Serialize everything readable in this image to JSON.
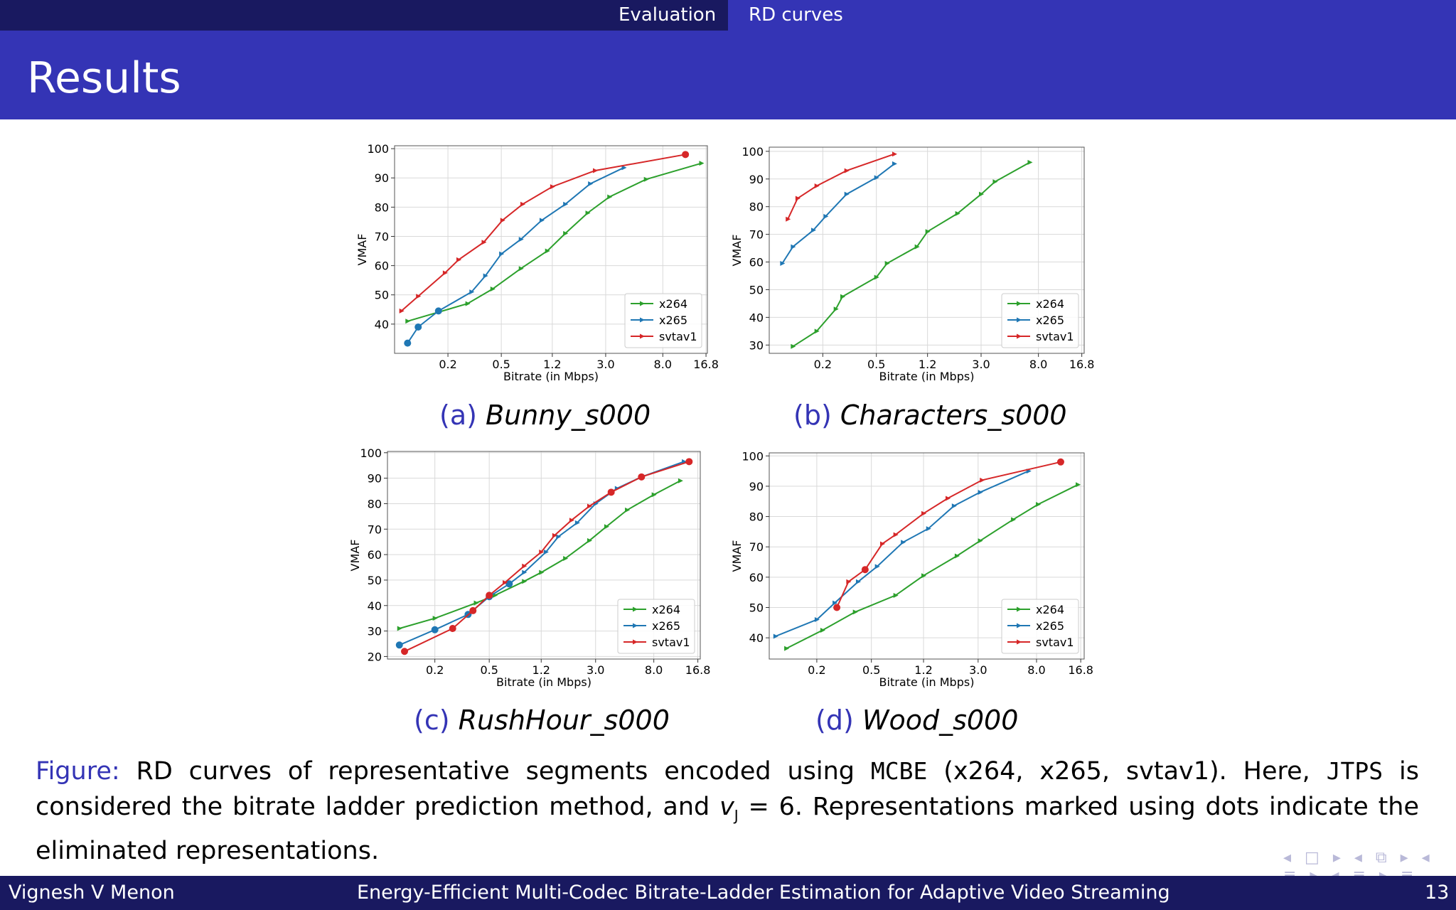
{
  "nav": {
    "section": "Evaluation",
    "subsection": "RD curves"
  },
  "slide_title": "Results",
  "colors": {
    "x264": "#2ca02c",
    "x265": "#1f77b4",
    "svtav1": "#d62728",
    "theme_dark": "#191960",
    "theme": "#3434b5"
  },
  "chart_data": [
    {
      "type": "line",
      "caption_label": "(a)",
      "caption_name": "Bunny_s000",
      "xlabel": "Bitrate (in Mbps)",
      "ylabel": "VMAF",
      "xscale": "log",
      "xticks": [
        0.2,
        0.5,
        1.2,
        3.0,
        8.0,
        16.8
      ],
      "xtick_labels": [
        "0.2",
        "0.5",
        "1.2",
        "3.0",
        "8.0",
        "16.8"
      ],
      "xlim": [
        0.08,
        17.2
      ],
      "ylim": [
        30,
        101
      ],
      "yticks": [
        40,
        50,
        60,
        70,
        80,
        90,
        100
      ],
      "grid": true,
      "legend": "lower-right",
      "series": [
        {
          "name": "x264",
          "points": [
            [
              0.1,
              41
            ],
            [
              0.28,
              47
            ],
            [
              0.43,
              52
            ],
            [
              0.7,
              59
            ],
            [
              1.1,
              65
            ],
            [
              1.5,
              71
            ],
            [
              2.2,
              78
            ],
            [
              3.2,
              83.5
            ],
            [
              6.0,
              89.5
            ],
            [
              15.5,
              95
            ]
          ],
          "eliminated": []
        },
        {
          "name": "x265",
          "points": [
            [
              0.1,
              33.5
            ],
            [
              0.12,
              39
            ],
            [
              0.17,
              44.5
            ],
            [
              0.3,
              51
            ],
            [
              0.38,
              56.5
            ],
            [
              0.5,
              64
            ],
            [
              0.7,
              69
            ],
            [
              1.0,
              75.5
            ],
            [
              1.5,
              81
            ],
            [
              2.3,
              88
            ],
            [
              4.1,
              93.5
            ]
          ],
          "eliminated": [
            0,
            1,
            2
          ]
        },
        {
          "name": "svtav1",
          "points": [
            [
              0.09,
              44.5
            ],
            [
              0.12,
              49.5
            ],
            [
              0.19,
              57.5
            ],
            [
              0.24,
              62
            ],
            [
              0.37,
              68
            ],
            [
              0.51,
              75.5
            ],
            [
              0.72,
              81
            ],
            [
              1.2,
              87
            ],
            [
              2.5,
              92.5
            ],
            [
              11.8,
              98
            ]
          ],
          "eliminated": [
            9
          ]
        }
      ]
    },
    {
      "type": "line",
      "caption_label": "(b)",
      "caption_name": "Characters_s000",
      "xlabel": "Bitrate (in Mbps)",
      "ylabel": "VMAF",
      "xscale": "log",
      "xticks": [
        0.2,
        0.5,
        1.2,
        3.0,
        8.0,
        16.8
      ],
      "xtick_labels": [
        "0.2",
        "0.5",
        "1.2",
        "3.0",
        "8.0",
        "16.8"
      ],
      "xlim": [
        0.08,
        17.5
      ],
      "ylim": [
        27,
        101.5
      ],
      "yticks": [
        30,
        40,
        50,
        60,
        70,
        80,
        90,
        100
      ],
      "grid": true,
      "legend": "lower-right",
      "series": [
        {
          "name": "x264",
          "points": [
            [
              0.12,
              29.5
            ],
            [
              0.18,
              35
            ],
            [
              0.25,
              43
            ],
            [
              0.28,
              47.5
            ],
            [
              0.5,
              54.5
            ],
            [
              0.6,
              59.5
            ],
            [
              1.0,
              65.5
            ],
            [
              1.2,
              71
            ],
            [
              2.0,
              77.5
            ],
            [
              3.0,
              84.5
            ],
            [
              3.8,
              89
            ],
            [
              6.9,
              96
            ]
          ],
          "eliminated": []
        },
        {
          "name": "x265",
          "points": [
            [
              0.1,
              59.5
            ],
            [
              0.12,
              65.5
            ],
            [
              0.17,
              71.5
            ],
            [
              0.21,
              76.5
            ],
            [
              0.3,
              84.5
            ],
            [
              0.5,
              90.5
            ],
            [
              0.68,
              95.5
            ]
          ],
          "eliminated": []
        },
        {
          "name": "svtav1",
          "points": [
            [
              0.11,
              75.5
            ],
            [
              0.13,
              83
            ],
            [
              0.18,
              87.5
            ],
            [
              0.3,
              93
            ],
            [
              0.68,
              99
            ]
          ],
          "eliminated": []
        }
      ]
    },
    {
      "type": "line",
      "caption_label": "(c)",
      "caption_name": "RushHour_s000",
      "xlabel": "Bitrate (in Mbps)",
      "ylabel": "VMAF",
      "xscale": "log",
      "xticks": [
        0.2,
        0.5,
        1.2,
        3.0,
        8.0,
        16.8
      ],
      "xtick_labels": [
        "0.2",
        "0.5",
        "1.2",
        "3.0",
        "8.0",
        "16.8"
      ],
      "xlim": [
        0.09,
        17.5
      ],
      "ylim": [
        19,
        100.5
      ],
      "yticks": [
        20,
        30,
        40,
        50,
        60,
        70,
        80,
        90,
        100
      ],
      "grid": true,
      "legend": "lower-right",
      "series": [
        {
          "name": "x264",
          "points": [
            [
              0.11,
              31
            ],
            [
              0.2,
              35
            ],
            [
              0.4,
              41
            ],
            [
              0.55,
              44
            ],
            [
              0.9,
              49.5
            ],
            [
              1.2,
              53
            ],
            [
              1.8,
              58.5
            ],
            [
              2.7,
              65.5
            ],
            [
              3.6,
              71
            ],
            [
              5.1,
              77.5
            ],
            [
              8.0,
              83.5
            ],
            [
              12.5,
              89
            ]
          ],
          "eliminated": []
        },
        {
          "name": "x265",
          "points": [
            [
              0.11,
              24.5
            ],
            [
              0.2,
              30.5
            ],
            [
              0.35,
              36.5
            ],
            [
              0.5,
              43.5
            ],
            [
              0.7,
              48.5
            ],
            [
              0.9,
              53
            ],
            [
              1.3,
              61
            ],
            [
              1.6,
              67
            ],
            [
              2.2,
              72.5
            ],
            [
              3.0,
              80
            ],
            [
              4.3,
              86
            ],
            [
              6.5,
              90.5
            ],
            [
              13.3,
              96.5
            ]
          ],
          "eliminated": [
            0,
            1,
            2,
            3,
            4
          ]
        },
        {
          "name": "svtav1",
          "points": [
            [
              0.12,
              22
            ],
            [
              0.27,
              31
            ],
            [
              0.38,
              38
            ],
            [
              0.5,
              44
            ],
            [
              0.65,
              49
            ],
            [
              0.9,
              55.5
            ],
            [
              1.2,
              61
            ],
            [
              1.5,
              67.5
            ],
            [
              2.0,
              73.5
            ],
            [
              2.7,
              79
            ],
            [
              3.9,
              84.5
            ],
            [
              6.5,
              90.5
            ],
            [
              14.5,
              96.5
            ]
          ],
          "eliminated": [
            0,
            1,
            2,
            3,
            10,
            11,
            12
          ]
        }
      ]
    },
    {
      "type": "line",
      "caption_label": "(d)",
      "caption_name": "Wood_s000",
      "xlabel": "Bitrate (in Mbps)",
      "ylabel": "VMAF",
      "xscale": "log",
      "xticks": [
        0.2,
        0.5,
        1.2,
        3.0,
        8.0,
        16.8
      ],
      "xtick_labels": [
        "0.2",
        "0.5",
        "1.2",
        "3.0",
        "8.0",
        "16.8"
      ],
      "xlim": [
        0.09,
        17.8
      ],
      "ylim": [
        33,
        101
      ],
      "yticks": [
        40,
        50,
        60,
        70,
        80,
        90,
        100
      ],
      "grid": true,
      "legend": "lower-right",
      "series": [
        {
          "name": "x264",
          "points": [
            [
              0.12,
              36.5
            ],
            [
              0.22,
              42.5
            ],
            [
              0.38,
              48.5
            ],
            [
              0.75,
              54
            ],
            [
              1.2,
              60.5
            ],
            [
              2.1,
              67
            ],
            [
              3.1,
              72
            ],
            [
              5.4,
              79
            ],
            [
              8.2,
              84
            ],
            [
              16.0,
              90.5
            ]
          ],
          "eliminated": []
        },
        {
          "name": "x265",
          "points": [
            [
              0.1,
              40.5
            ],
            [
              0.2,
              46
            ],
            [
              0.27,
              51.5
            ],
            [
              0.4,
              58.5
            ],
            [
              0.55,
              63.5
            ],
            [
              0.85,
              71.5
            ],
            [
              1.3,
              76
            ],
            [
              2.0,
              83.5
            ],
            [
              3.1,
              88
            ],
            [
              7.0,
              95
            ]
          ],
          "eliminated": []
        },
        {
          "name": "svtav1",
          "points": [
            [
              0.28,
              50
            ],
            [
              0.34,
              58.5
            ],
            [
              0.45,
              62.5
            ],
            [
              0.6,
              71
            ],
            [
              0.75,
              74
            ],
            [
              1.2,
              81
            ],
            [
              1.8,
              86
            ],
            [
              3.2,
              92
            ],
            [
              12.0,
              98
            ]
          ],
          "eliminated": [
            0,
            2,
            8
          ]
        }
      ]
    }
  ],
  "figure_caption": {
    "label": "Figure:",
    "part1": " RD curves of representative segments encoded using ",
    "mcbe": "MCBE",
    "part2": " (x264, x265, svtav1). Here, ",
    "jtps": "JTPS",
    "part3": " is considered the bitrate ladder prediction method, and ",
    "v_symbol": "v",
    "v_subscript": "J",
    "part4": " = 6.  Representations marked using dots indicate the eliminated representations."
  },
  "nav_symbols": "◂ □ ▸ ◂ ⧉ ▸ ◂ ≡ ▸ ◂ ≡ ▸ ≡ ↺ ◌ ◌",
  "footer": {
    "author": "Vignesh V Menon",
    "talk_title": "Energy-Efficient Multi-Codec Bitrate-Ladder Estimation for Adaptive Video Streaming",
    "page": "13"
  }
}
